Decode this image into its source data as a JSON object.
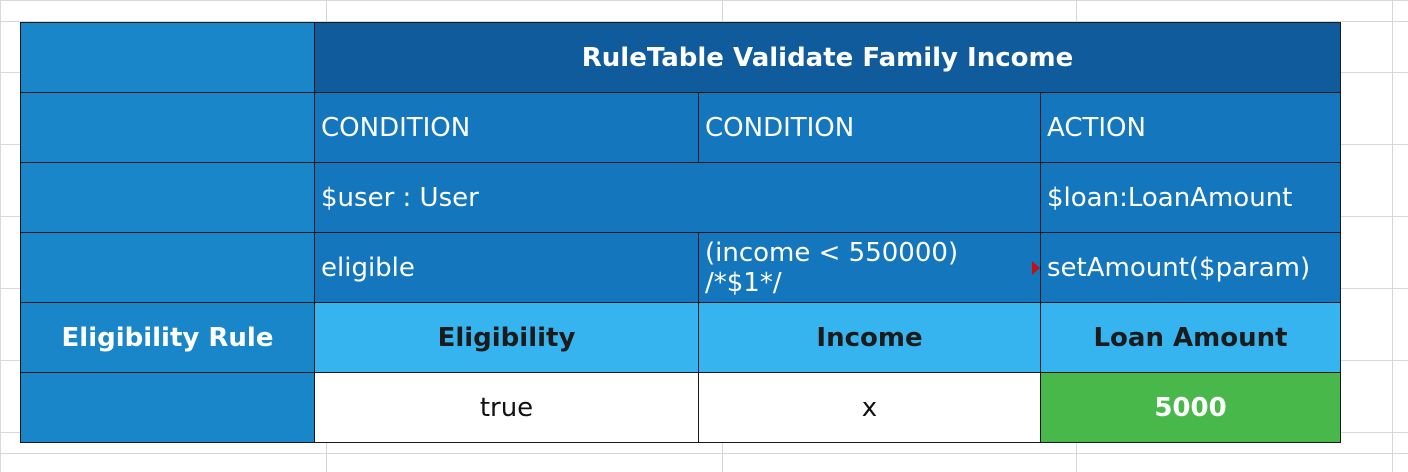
{
  "rule_table": {
    "title": "RuleTable Validate Family Income",
    "row_types": [
      "CONDITION",
      "CONDITION",
      "ACTION"
    ],
    "object_types": {
      "condition": "$user : User",
      "action": "$loan:LoanAmount"
    },
    "constraints": [
      "eligible",
      "(income < 550000) /*$1*/",
      "setAmount($param)"
    ],
    "side_label": "Eligibility Rule",
    "column_headers": [
      "Eligibility",
      "Income",
      "Loan Amount"
    ],
    "data_row": [
      "true",
      "x",
      "5000"
    ]
  },
  "colors": {
    "side": "#1886c8",
    "title": "#0f5b9c",
    "mid": "#1476bd",
    "header": "#36b4f0",
    "value_green": "#49b84a"
  }
}
